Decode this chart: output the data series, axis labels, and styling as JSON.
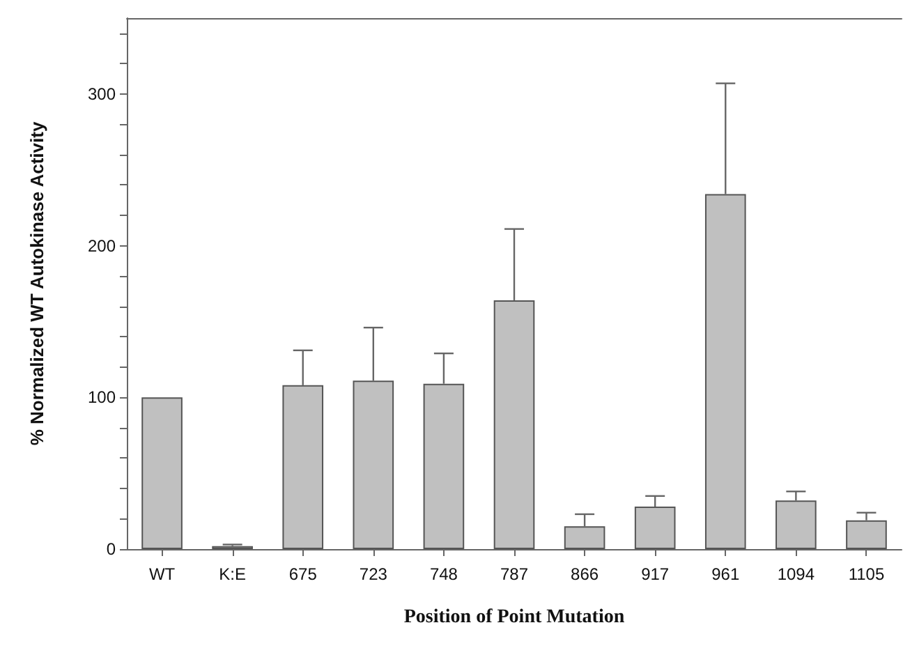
{
  "chart_data": {
    "type": "bar",
    "xlabel": "Position of Point Mutation",
    "ylabel": "% Normalized WT Autokinase Activity",
    "categories": [
      "WT",
      "K:E",
      "675",
      "723",
      "748",
      "787",
      "866",
      "917",
      "961",
      "1094",
      "1105"
    ],
    "values": [
      100,
      2,
      108,
      111,
      109,
      164,
      15,
      28,
      234,
      32,
      19
    ],
    "errors": [
      null,
      [
        2,
        3
      ],
      [
        108,
        131
      ],
      [
        111,
        146
      ],
      [
        109,
        129
      ],
      [
        164,
        211
      ],
      [
        15,
        23
      ],
      [
        28,
        35
      ],
      [
        234,
        307
      ],
      [
        32,
        38
      ],
      [
        19,
        24
      ]
    ],
    "color": "#c0c0c0",
    "ylim": [
      0,
      350
    ],
    "yticks": [
      0,
      {
        "value": 20,
        "label": null
      },
      {
        "value": 40,
        "label": null
      },
      {
        "value": 60,
        "label": null
      },
      {
        "value": 80,
        "label": null
      },
      100,
      {
        "value": 120,
        "label": null
      },
      {
        "value": 140,
        "label": null
      },
      {
        "value": 160,
        "label": null
      },
      {
        "value": 180,
        "label": null
      },
      200,
      {
        "value": 220,
        "label": null
      },
      {
        "value": 240,
        "label": null
      },
      {
        "value": 260,
        "label": null
      },
      {
        "value": 280,
        "label": null
      },
      300,
      {
        "value": 320,
        "label": null
      },
      {
        "value": 340,
        "label": null
      }
    ],
    "data_labels": false
  }
}
